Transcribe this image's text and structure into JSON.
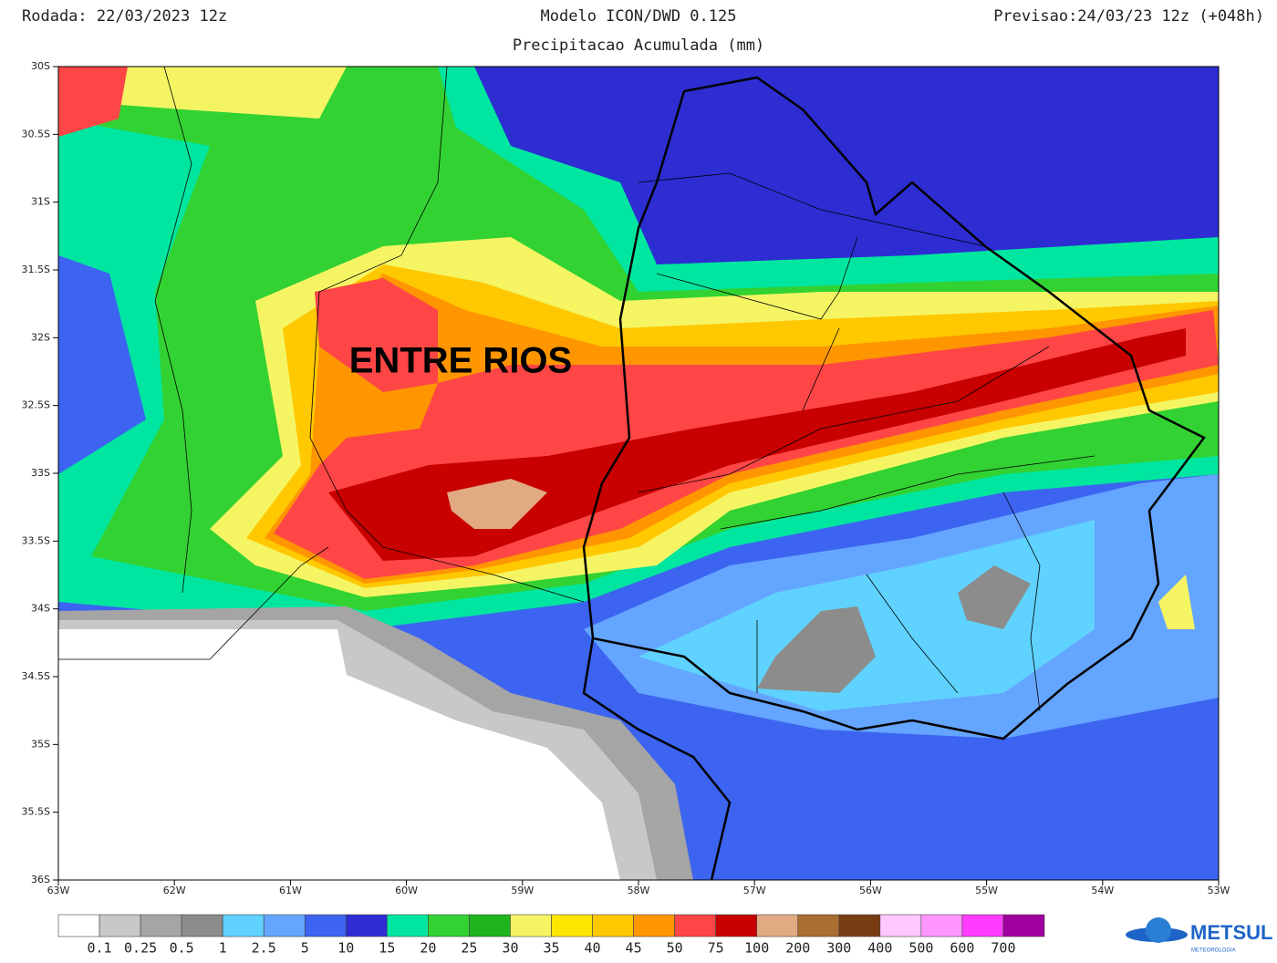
{
  "header": {
    "run": "Rodada: 22/03/2023 12z",
    "model": "Modelo ICON/DWD 0.125",
    "subtitle": "Precipitacao Acumulada (mm)",
    "forecast": "Previsao:24/03/23 12z (+048h)"
  },
  "map": {
    "region_label": "ENTRE RIOS",
    "lat_ticks": [
      "30S",
      "30.5S",
      "31S",
      "31.5S",
      "32S",
      "32.5S",
      "33S",
      "33.5S",
      "34S",
      "34.5S",
      "35S",
      "35.5S",
      "36S"
    ],
    "lon_ticks": [
      "63W",
      "62W",
      "61W",
      "60W",
      "59W",
      "58W",
      "57W",
      "56W",
      "55W",
      "54W",
      "53W"
    ]
  },
  "colorbar": {
    "colors": [
      "#ffffff",
      "#c8c8c8",
      "#a5a5a5",
      "#8c8c8c",
      "#5fd2ff",
      "#64a5ff",
      "#3c64f0",
      "#2d2dd2",
      "#00e6a0",
      "#32d232",
      "#1eb41e",
      "#f5f564",
      "#ffe600",
      "#ffc800",
      "#ff9600",
      "#ff4646",
      "#c80000",
      "#e1aa82",
      "#aa6e32",
      "#783c14",
      "#ffc8ff",
      "#ff96ff",
      "#ff3cff",
      "#a000a0"
    ],
    "labels": [
      "0.1",
      "0.25",
      "0.5",
      "1",
      "2.5",
      "5",
      "10",
      "15",
      "20",
      "25",
      "30",
      "35",
      "40",
      "45",
      "50",
      "75",
      "100",
      "200",
      "300",
      "400",
      "500",
      "600",
      "700"
    ]
  },
  "logo": {
    "name": "METSUL",
    "tagline": "METEOROLOGIA"
  }
}
